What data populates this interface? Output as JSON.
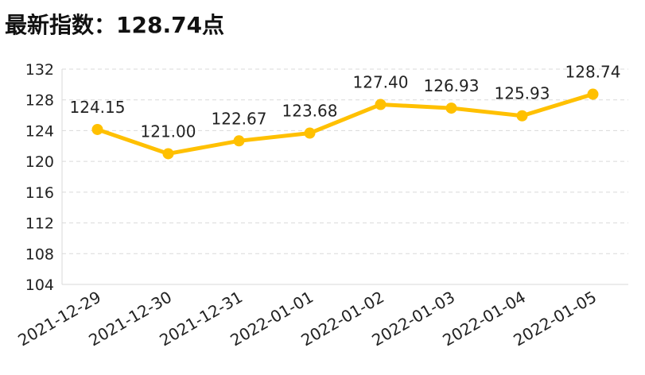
{
  "header": {
    "title": "最新指数：128.74点"
  },
  "colors": {
    "line": "#FFC000",
    "grid": "#D9D9D9",
    "text": "#222222"
  },
  "chart_data": {
    "type": "line",
    "title": "最新指数：128.74点",
    "categories": [
      "2021-12-29",
      "2021-12-30",
      "2021-12-31",
      "2022-01-01",
      "2022-01-02",
      "2022-01-03",
      "2022-01-04",
      "2022-01-05"
    ],
    "values": [
      124.15,
      121.0,
      122.67,
      123.68,
      127.4,
      126.93,
      125.93,
      128.74
    ],
    "value_labels": [
      "124.15",
      "121.00",
      "122.67",
      "123.68",
      "127.40",
      "126.93",
      "125.93",
      "128.74"
    ],
    "y_ticks": [
      104,
      108,
      112,
      116,
      120,
      124,
      128,
      132
    ],
    "ylim": [
      104,
      132
    ],
    "xlabel": "",
    "ylabel": "",
    "grid": true,
    "legend": "none"
  }
}
